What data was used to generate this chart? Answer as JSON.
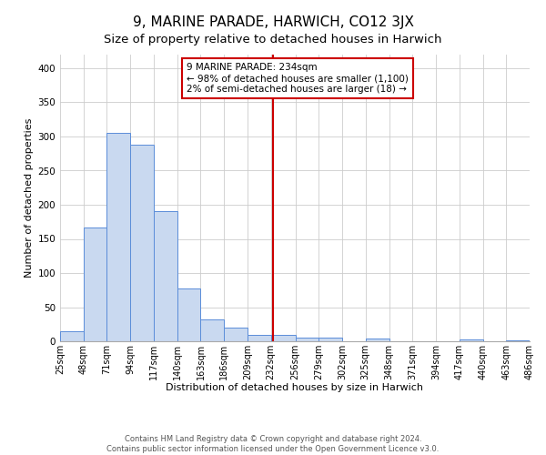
{
  "title": "9, MARINE PARADE, HARWICH, CO12 3JX",
  "subtitle": "Size of property relative to detached houses in Harwich",
  "xlabel": "Distribution of detached houses by size in Harwich",
  "ylabel": "Number of detached properties",
  "bar_color": "#c9d9f0",
  "bar_edge_color": "#5b8dd9",
  "bins": [
    25,
    48,
    71,
    94,
    117,
    140,
    163,
    186,
    209,
    232,
    256,
    279,
    302,
    325,
    348,
    371,
    394,
    417,
    440,
    463,
    486
  ],
  "counts": [
    15,
    167,
    305,
    288,
    190,
    78,
    32,
    20,
    10,
    9,
    5,
    5,
    0,
    4,
    0,
    0,
    0,
    3,
    0,
    2
  ],
  "tick_labels": [
    "25sqm",
    "48sqm",
    "71sqm",
    "94sqm",
    "117sqm",
    "140sqm",
    "163sqm",
    "186sqm",
    "209sqm",
    "232sqm",
    "256sqm",
    "279sqm",
    "302sqm",
    "325sqm",
    "348sqm",
    "371sqm",
    "394sqm",
    "417sqm",
    "440sqm",
    "463sqm",
    "486sqm"
  ],
  "vline_x": 234,
  "vline_color": "#cc0000",
  "annotation_box_text": "9 MARINE PARADE: 234sqm\n← 98% of detached houses are smaller (1,100)\n2% of semi-detached houses are larger (18) →",
  "box_edge_color": "#cc0000",
  "ylim": [
    0,
    420
  ],
  "yticks": [
    0,
    50,
    100,
    150,
    200,
    250,
    300,
    350,
    400
  ],
  "background_color": "#ffffff",
  "grid_color": "#cccccc",
  "title_fontsize": 11,
  "subtitle_fontsize": 9.5,
  "axis_label_fontsize": 8,
  "tick_fontsize": 7,
  "footer_fontsize": 6,
  "annotation_fontsize": 7.5
}
